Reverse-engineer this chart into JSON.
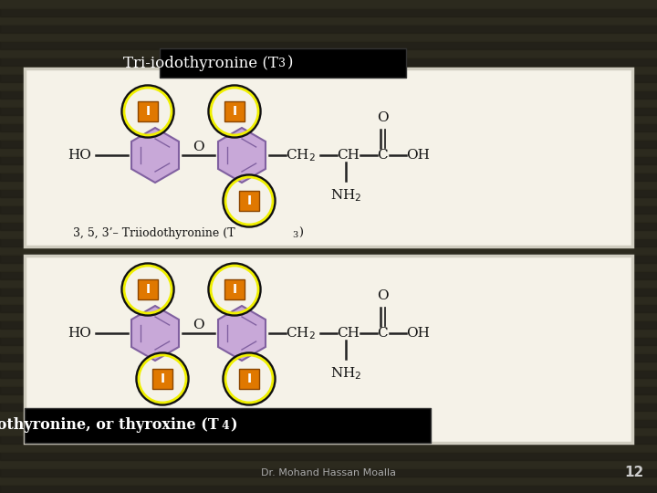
{
  "bg_dark": "#2a2820",
  "bg_grain1": "#1e1c14",
  "bg_grain2": "#2e2c1e",
  "box_face": "#f5f2e8",
  "box_edge": "#d0cdc0",
  "title_t3": "Tri-iodothyronine (T",
  "title_t3_sub": "3",
  "title_t3_close": ")",
  "title_t4": "Tetra-iodothyronine, or thyroxine (T",
  "title_t4_sub": "4",
  "title_t4_close": ")",
  "label_t3": "3, 5, 3’– Triiodothyronine (T",
  "label_t3_sub": "3",
  "label_t3_close": ")",
  "iodine_bg": "#e07800",
  "iodine_border": "#8b4500",
  "circle_yellow": "#f0f000",
  "circle_black": "#111111",
  "ring_fill": "#c8a8d8",
  "ring_edge": "#8060a0",
  "line_color": "#222222",
  "text_color": "#111111",
  "title_bg": "#000000",
  "title_fg": "#ffffff",
  "footer_text": "Dr. Mohand Hassan Moalla",
  "footer_color": "#aaaaaa",
  "page_num": "12",
  "page_color": "#cccccc"
}
